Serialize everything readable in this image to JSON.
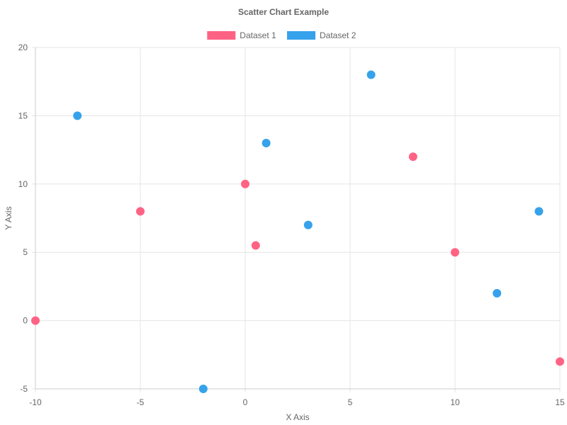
{
  "chart_data": {
    "type": "scatter",
    "title": "Scatter Chart Example",
    "xlabel": "X Axis",
    "ylabel": "Y Axis",
    "xlim": [
      -10,
      15
    ],
    "ylim": [
      -5,
      20
    ],
    "x_ticks": [
      -10,
      -5,
      0,
      5,
      10,
      15
    ],
    "y_ticks": [
      -5,
      0,
      5,
      10,
      15,
      20
    ],
    "grid": true,
    "legend_position": "top-center",
    "series": [
      {
        "name": "Dataset 1",
        "color": "#ff6384",
        "points": [
          {
            "x": -10,
            "y": 0
          },
          {
            "x": -5,
            "y": 8
          },
          {
            "x": 0,
            "y": 10
          },
          {
            "x": 0.5,
            "y": 5.5
          },
          {
            "x": 8,
            "y": 12
          },
          {
            "x": 10,
            "y": 5
          },
          {
            "x": 15,
            "y": -3
          }
        ]
      },
      {
        "name": "Dataset 2",
        "color": "#36a2eb",
        "points": [
          {
            "x": -8,
            "y": 15
          },
          {
            "x": -2,
            "y": -5
          },
          {
            "x": 1,
            "y": 13
          },
          {
            "x": 3,
            "y": 7
          },
          {
            "x": 6,
            "y": 18
          },
          {
            "x": 12,
            "y": 2
          },
          {
            "x": 14,
            "y": 8
          }
        ]
      }
    ]
  }
}
